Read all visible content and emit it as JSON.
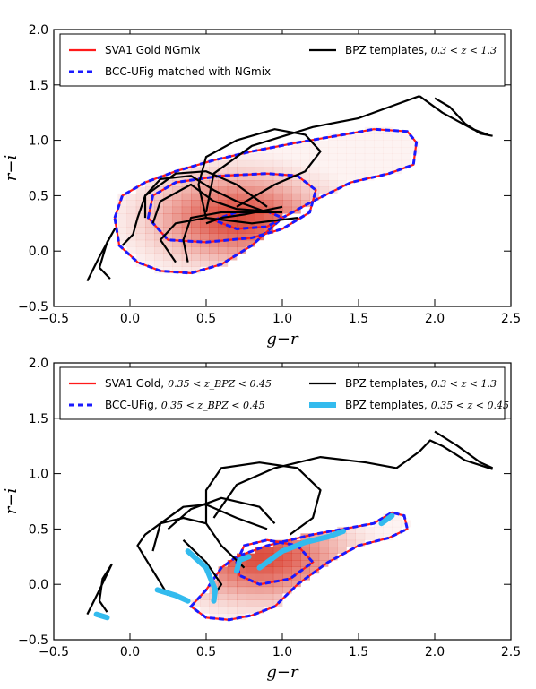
{
  "colors": {
    "sva1": "#ff1a1a",
    "bcc": "#1a1aff",
    "templates": "#000000",
    "templates_zbin": "#33bbee",
    "density": "#d7301f"
  },
  "chart_data": [
    {
      "type": "heatmap",
      "panel": "top",
      "xlabel": "g−r",
      "ylabel": "r−i",
      "xlim": [
        -0.5,
        2.5
      ],
      "ylim": [
        -0.5,
        2.0
      ],
      "xticks": [
        "−0.5",
        "0.0",
        "0.5",
        "1.0",
        "1.5",
        "2.0",
        "2.5"
      ],
      "yticks": [
        "−0.5",
        "0.0",
        "0.5",
        "1.0",
        "1.5",
        "2.0"
      ],
      "xtick_values": [
        -0.5,
        0.0,
        0.5,
        1.0,
        1.5,
        2.0,
        2.5
      ],
      "ytick_values": [
        -0.5,
        0.0,
        0.5,
        1.0,
        1.5,
        2.0
      ],
      "grid": false,
      "legend_position": "top",
      "legend": [
        {
          "label": "SVA1 Gold NGmix",
          "math": "",
          "style": "sva1"
        },
        {
          "label": "BCC-UFig matched with NGmix",
          "math": "",
          "style": "bcc"
        },
        {
          "label": "BPZ templates,",
          "math": "0.3 < z < 1.3",
          "style": "templates"
        }
      ],
      "density_peak": [
        0.7,
        0.3
      ],
      "contours": [
        [
          [
            -0.1,
            0.3
          ],
          [
            -0.05,
            0.5
          ],
          [
            0.1,
            0.62
          ],
          [
            0.3,
            0.72
          ],
          [
            0.55,
            0.82
          ],
          [
            0.8,
            0.9
          ],
          [
            1.1,
            0.98
          ],
          [
            1.4,
            1.05
          ],
          [
            1.6,
            1.1
          ],
          [
            1.82,
            1.08
          ],
          [
            1.88,
            0.98
          ],
          [
            1.86,
            0.78
          ],
          [
            1.7,
            0.7
          ],
          [
            1.45,
            0.62
          ],
          [
            1.2,
            0.45
          ],
          [
            1.0,
            0.3
          ],
          [
            0.8,
            0.05
          ],
          [
            0.6,
            -0.12
          ],
          [
            0.4,
            -0.2
          ],
          [
            0.2,
            -0.18
          ],
          [
            0.05,
            -0.1
          ],
          [
            -0.07,
            0.05
          ],
          [
            -0.1,
            0.3
          ]
        ],
        [
          [
            0.12,
            0.3
          ],
          [
            0.15,
            0.5
          ],
          [
            0.3,
            0.62
          ],
          [
            0.6,
            0.68
          ],
          [
            0.9,
            0.7
          ],
          [
            1.1,
            0.68
          ],
          [
            1.22,
            0.55
          ],
          [
            1.18,
            0.35
          ],
          [
            1.0,
            0.2
          ],
          [
            0.8,
            0.12
          ],
          [
            0.5,
            0.08
          ],
          [
            0.25,
            0.1
          ],
          [
            0.12,
            0.3
          ]
        ],
        [
          [
            0.55,
            0.28
          ],
          [
            0.7,
            0.35
          ],
          [
            0.9,
            0.36
          ],
          [
            1.0,
            0.3
          ],
          [
            0.9,
            0.22
          ],
          [
            0.7,
            0.2
          ],
          [
            0.55,
            0.28
          ]
        ]
      ],
      "templates": [
        [
          [
            -0.28,
            -0.27
          ],
          [
            -0.2,
            -0.05
          ],
          [
            -0.1,
            0.2
          ],
          [
            -0.15,
            0.08
          ],
          [
            -0.2,
            -0.15
          ],
          [
            -0.13,
            -0.25
          ]
        ],
        [
          [
            -0.05,
            0.05
          ],
          [
            0.02,
            0.15
          ],
          [
            0.05,
            0.3
          ],
          [
            0.1,
            0.5
          ],
          [
            0.3,
            0.7
          ],
          [
            0.5,
            0.72
          ],
          [
            0.7,
            0.6
          ],
          [
            0.9,
            0.4
          ]
        ],
        [
          [
            0.1,
            0.3
          ],
          [
            0.1,
            0.5
          ],
          [
            0.2,
            0.65
          ],
          [
            0.4,
            0.68
          ],
          [
            0.55,
            0.55
          ],
          [
            0.7,
            0.45
          ],
          [
            0.9,
            0.35
          ]
        ],
        [
          [
            0.15,
            0.25
          ],
          [
            0.2,
            0.45
          ],
          [
            0.4,
            0.6
          ],
          [
            0.55,
            0.45
          ],
          [
            0.7,
            0.38
          ],
          [
            1.0,
            0.35
          ]
        ],
        [
          [
            0.3,
            -0.1
          ],
          [
            0.2,
            0.1
          ],
          [
            0.3,
            0.25
          ],
          [
            0.5,
            0.3
          ],
          [
            0.8,
            0.25
          ],
          [
            1.1,
            0.3
          ]
        ],
        [
          [
            0.5,
            0.25
          ],
          [
            0.6,
            0.3
          ],
          [
            0.75,
            0.33
          ],
          [
            1.0,
            0.4
          ]
        ],
        [
          [
            0.5,
            0.3
          ],
          [
            0.45,
            0.6
          ],
          [
            0.5,
            0.85
          ],
          [
            0.7,
            1.0
          ],
          [
            0.95,
            1.1
          ],
          [
            1.15,
            1.05
          ],
          [
            1.25,
            0.9
          ],
          [
            1.15,
            0.72
          ],
          [
            0.95,
            0.6
          ],
          [
            0.7,
            0.4
          ]
        ],
        [
          [
            0.5,
            0.35
          ],
          [
            0.55,
            0.7
          ],
          [
            0.8,
            0.95
          ],
          [
            1.2,
            1.12
          ],
          [
            1.5,
            1.2
          ],
          [
            1.7,
            1.3
          ],
          [
            1.9,
            1.4
          ]
        ],
        [
          [
            0.38,
            -0.1
          ],
          [
            0.35,
            0.1
          ],
          [
            0.4,
            0.3
          ],
          [
            0.6,
            0.35
          ],
          [
            1.0,
            0.35
          ]
        ],
        [
          [
            2.0,
            1.38
          ],
          [
            2.1,
            1.3
          ],
          [
            2.2,
            1.15
          ],
          [
            2.3,
            1.06
          ],
          [
            2.38,
            1.04
          ]
        ],
        [
          [
            1.9,
            1.4
          ],
          [
            2.05,
            1.25
          ],
          [
            2.25,
            1.1
          ],
          [
            2.35,
            1.05
          ]
        ]
      ],
      "templates_zbin": []
    },
    {
      "type": "heatmap",
      "panel": "bottom",
      "xlabel": "g−r",
      "ylabel": "r−i",
      "xlim": [
        -0.5,
        2.5
      ],
      "ylim": [
        -0.5,
        2.0
      ],
      "xticks": [
        "−0.5",
        "0.0",
        "0.5",
        "1.0",
        "1.5",
        "2.0",
        "2.5"
      ],
      "yticks": [
        "−0.5",
        "0.0",
        "0.5",
        "1.0",
        "1.5",
        "2.0"
      ],
      "xtick_values": [
        -0.5,
        0.0,
        0.5,
        1.0,
        1.5,
        2.0,
        2.5
      ],
      "ytick_values": [
        -0.5,
        0.0,
        0.5,
        1.0,
        1.5,
        2.0
      ],
      "grid": false,
      "legend_position": "top",
      "legend": [
        {
          "label": "SVA1 Gold,",
          "math": "0.35 < z_BPZ < 0.45",
          "style": "sva1"
        },
        {
          "label": "BCC-UFig,",
          "math": "0.35 < z_BPZ < 0.45",
          "style": "bcc"
        },
        {
          "label": "BPZ templates,",
          "math": "0.3 < z < 1.3",
          "style": "templates"
        },
        {
          "label": "BPZ templates,",
          "math": "0.35 < z < 0.45",
          "style": "templates_zbin"
        }
      ],
      "density_peak": [
        0.85,
        0.25
      ],
      "contours": [
        [
          [
            0.4,
            -0.2
          ],
          [
            0.5,
            -0.05
          ],
          [
            0.6,
            0.15
          ],
          [
            0.7,
            0.25
          ],
          [
            0.9,
            0.35
          ],
          [
            1.2,
            0.45
          ],
          [
            1.4,
            0.5
          ],
          [
            1.6,
            0.55
          ],
          [
            1.72,
            0.65
          ],
          [
            1.8,
            0.62
          ],
          [
            1.82,
            0.5
          ],
          [
            1.7,
            0.42
          ],
          [
            1.5,
            0.35
          ],
          [
            1.3,
            0.2
          ],
          [
            1.1,
            0.0
          ],
          [
            0.95,
            -0.2
          ],
          [
            0.8,
            -0.28
          ],
          [
            0.65,
            -0.32
          ],
          [
            0.5,
            -0.3
          ],
          [
            0.4,
            -0.2
          ]
        ],
        [
          [
            0.7,
            0.2
          ],
          [
            0.75,
            0.35
          ],
          [
            0.9,
            0.4
          ],
          [
            1.1,
            0.35
          ],
          [
            1.2,
            0.2
          ],
          [
            1.05,
            0.05
          ],
          [
            0.85,
            0.0
          ],
          [
            0.72,
            0.08
          ],
          [
            0.7,
            0.2
          ]
        ]
      ],
      "templates": [
        [
          [
            -0.28,
            -0.27
          ],
          [
            -0.2,
            -0.05
          ],
          [
            -0.12,
            0.18
          ],
          [
            -0.18,
            0.05
          ],
          [
            -0.2,
            -0.15
          ],
          [
            -0.15,
            -0.25
          ]
        ],
        [
          [
            0.25,
            -0.1
          ],
          [
            0.05,
            0.35
          ],
          [
            0.1,
            0.45
          ],
          [
            0.2,
            0.55
          ],
          [
            0.35,
            0.6
          ],
          [
            0.5,
            0.55
          ],
          [
            0.6,
            0.35
          ],
          [
            0.75,
            0.15
          ]
        ],
        [
          [
            0.15,
            0.3
          ],
          [
            0.2,
            0.55
          ],
          [
            0.35,
            0.7
          ],
          [
            0.5,
            0.72
          ],
          [
            0.7,
            0.6
          ],
          [
            0.9,
            0.5
          ]
        ],
        [
          [
            0.25,
            0.5
          ],
          [
            0.4,
            0.68
          ],
          [
            0.6,
            0.78
          ],
          [
            0.85,
            0.7
          ],
          [
            0.95,
            0.55
          ]
        ],
        [
          [
            0.35,
            0.4
          ],
          [
            0.5,
            0.2
          ],
          [
            0.6,
            0.0
          ],
          [
            0.55,
            -0.1
          ]
        ],
        [
          [
            0.5,
            0.55
          ],
          [
            0.5,
            0.85
          ],
          [
            0.6,
            1.05
          ],
          [
            0.85,
            1.1
          ],
          [
            1.1,
            1.05
          ],
          [
            1.25,
            0.85
          ],
          [
            1.2,
            0.6
          ],
          [
            1.05,
            0.45
          ]
        ],
        [
          [
            0.55,
            0.6
          ],
          [
            0.7,
            0.9
          ],
          [
            0.95,
            1.05
          ],
          [
            1.25,
            1.15
          ],
          [
            1.55,
            1.1
          ],
          [
            1.75,
            1.05
          ],
          [
            1.9,
            1.2
          ],
          [
            1.97,
            1.3
          ],
          [
            2.05,
            1.25
          ],
          [
            2.2,
            1.12
          ],
          [
            2.38,
            1.04
          ]
        ],
        [
          [
            2.0,
            1.38
          ],
          [
            2.15,
            1.25
          ],
          [
            2.3,
            1.1
          ],
          [
            2.38,
            1.05
          ]
        ]
      ],
      "templates_zbin": [
        [
          [
            -0.22,
            -0.27
          ],
          [
            -0.15,
            -0.3
          ]
        ],
        [
          [
            0.18,
            -0.05
          ],
          [
            0.3,
            -0.1
          ],
          [
            0.38,
            -0.15
          ]
        ],
        [
          [
            0.38,
            0.3
          ],
          [
            0.5,
            0.15
          ],
          [
            0.56,
            -0.05
          ],
          [
            0.55,
            -0.15
          ]
        ],
        [
          [
            0.7,
            0.12
          ],
          [
            0.72,
            0.22
          ],
          [
            0.78,
            0.25
          ]
        ],
        [
          [
            0.85,
            0.15
          ],
          [
            1.0,
            0.3
          ],
          [
            1.15,
            0.38
          ],
          [
            1.3,
            0.43
          ],
          [
            1.4,
            0.48
          ]
        ],
        [
          [
            1.65,
            0.55
          ],
          [
            1.72,
            0.62
          ]
        ]
      ]
    }
  ]
}
